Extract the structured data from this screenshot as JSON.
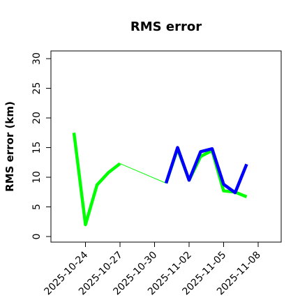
{
  "chart_data": {
    "type": "line",
    "title": "RMS error",
    "y_label": "RMS error (km)",
    "x": [
      "2025-10-23",
      "2025-10-24",
      "2025-10-25",
      "2025-10-26",
      "2025-10-27",
      "2025-10-28",
      "2025-10-29",
      "2025-10-30",
      "2025-10-31",
      "2025-11-01",
      "2025-11-02",
      "2025-11-03",
      "2025-11-04",
      "2025-11-05",
      "2025-11-06",
      "2025-11-07"
    ],
    "series": [
      {
        "color": "#00ff00",
        "values": [
          17.5,
          2,
          8.7,
          10.8,
          12.3,
          null,
          null,
          null,
          9.0,
          14.8,
          9.5,
          13.5,
          14.5,
          7.7,
          7.5,
          6.7
        ]
      },
      {
        "color": "#0000ff",
        "values": [
          null,
          null,
          null,
          null,
          null,
          null,
          null,
          null,
          9.0,
          15.0,
          9.5,
          14.3,
          14.8,
          8.8,
          7.4,
          12.2
        ]
      }
    ],
    "bridge_gaps": true,
    "xlim": [
      "2025-10-21",
      "2025-11-10"
    ],
    "xticks": [
      "2025-10-24",
      "2025-10-27",
      "2025-10-30",
      "2025-11-02",
      "2025-11-05",
      "2025-11-08"
    ],
    "highlight_xtick_index": 2,
    "highlight_color": "#228b22",
    "ylim": [
      -0.94,
      31.3
    ],
    "yticks": [
      0,
      5,
      10,
      15,
      20,
      25,
      30
    ]
  }
}
